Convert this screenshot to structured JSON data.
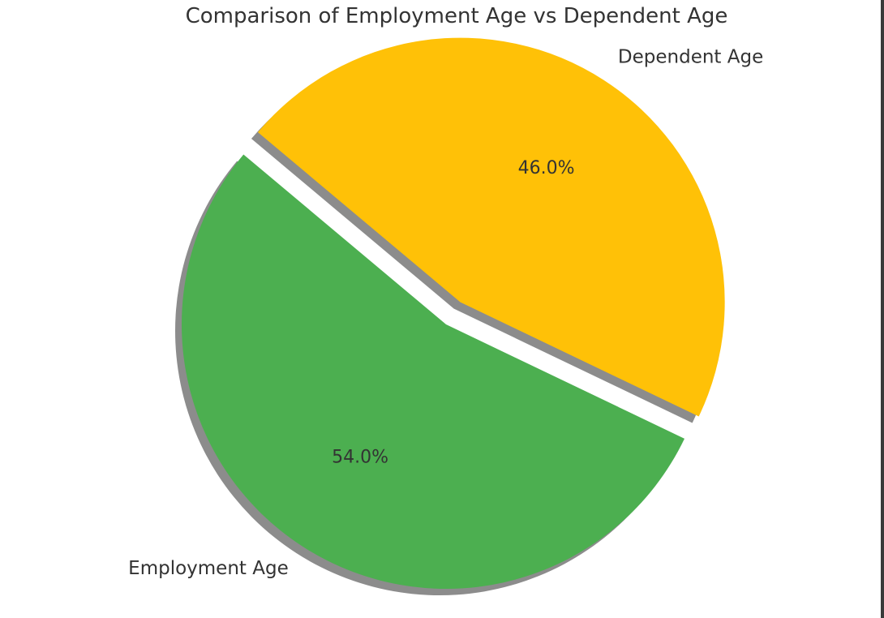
{
  "chart_data": {
    "type": "pie",
    "title": "Comparison of Employment Age vs Dependent Age",
    "slices": [
      {
        "label": "Employment Age",
        "value": 54.0,
        "pct_label": "54.0%",
        "color": "#4caf50"
      },
      {
        "label": "Dependent Age",
        "value": 46.0,
        "pct_label": "46.0%",
        "color": "#ffc107"
      }
    ],
    "explode": [
      0,
      0.1
    ],
    "shadow": true,
    "start_angle_deg": 140
  }
}
